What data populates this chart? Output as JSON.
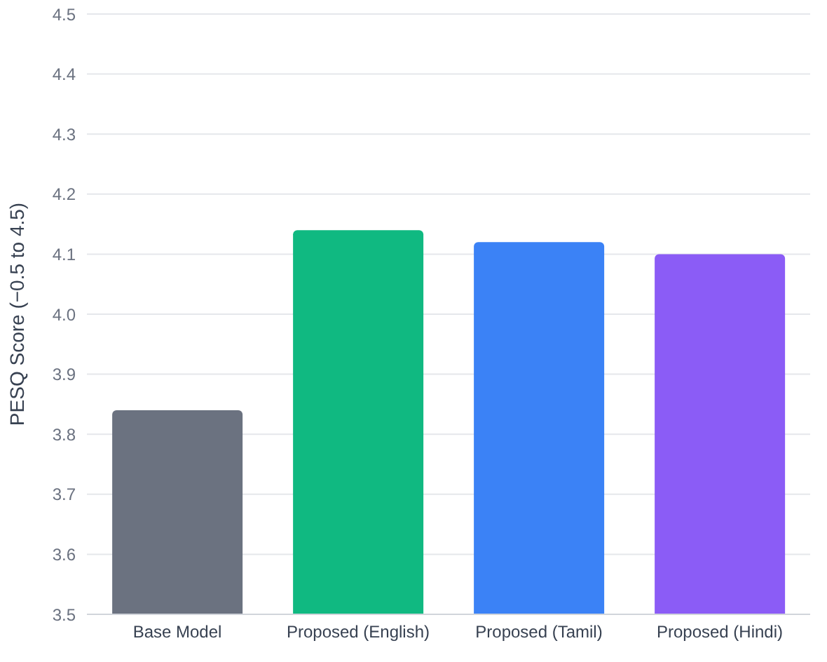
{
  "chart_data": {
    "type": "bar",
    "ylabel": "PESQ Score (−0.5 to 4.5)",
    "categories": [
      "Base Model",
      "Proposed (English)",
      "Proposed (Tamil)",
      "Proposed (Hindi)"
    ],
    "values": [
      3.84,
      4.14,
      4.12,
      4.1
    ],
    "colors": [
      "#6b7280",
      "#10b981",
      "#3b82f6",
      "#8b5cf6"
    ],
    "ylim": [
      3.5,
      4.5
    ],
    "yticks": [
      3.5,
      3.6,
      3.7,
      3.8,
      3.9,
      {
        "value": 4,
        "label": "4.0"
      },
      4.1,
      4.2,
      4.3,
      4.4,
      4.5
    ],
    "grid": "y"
  }
}
